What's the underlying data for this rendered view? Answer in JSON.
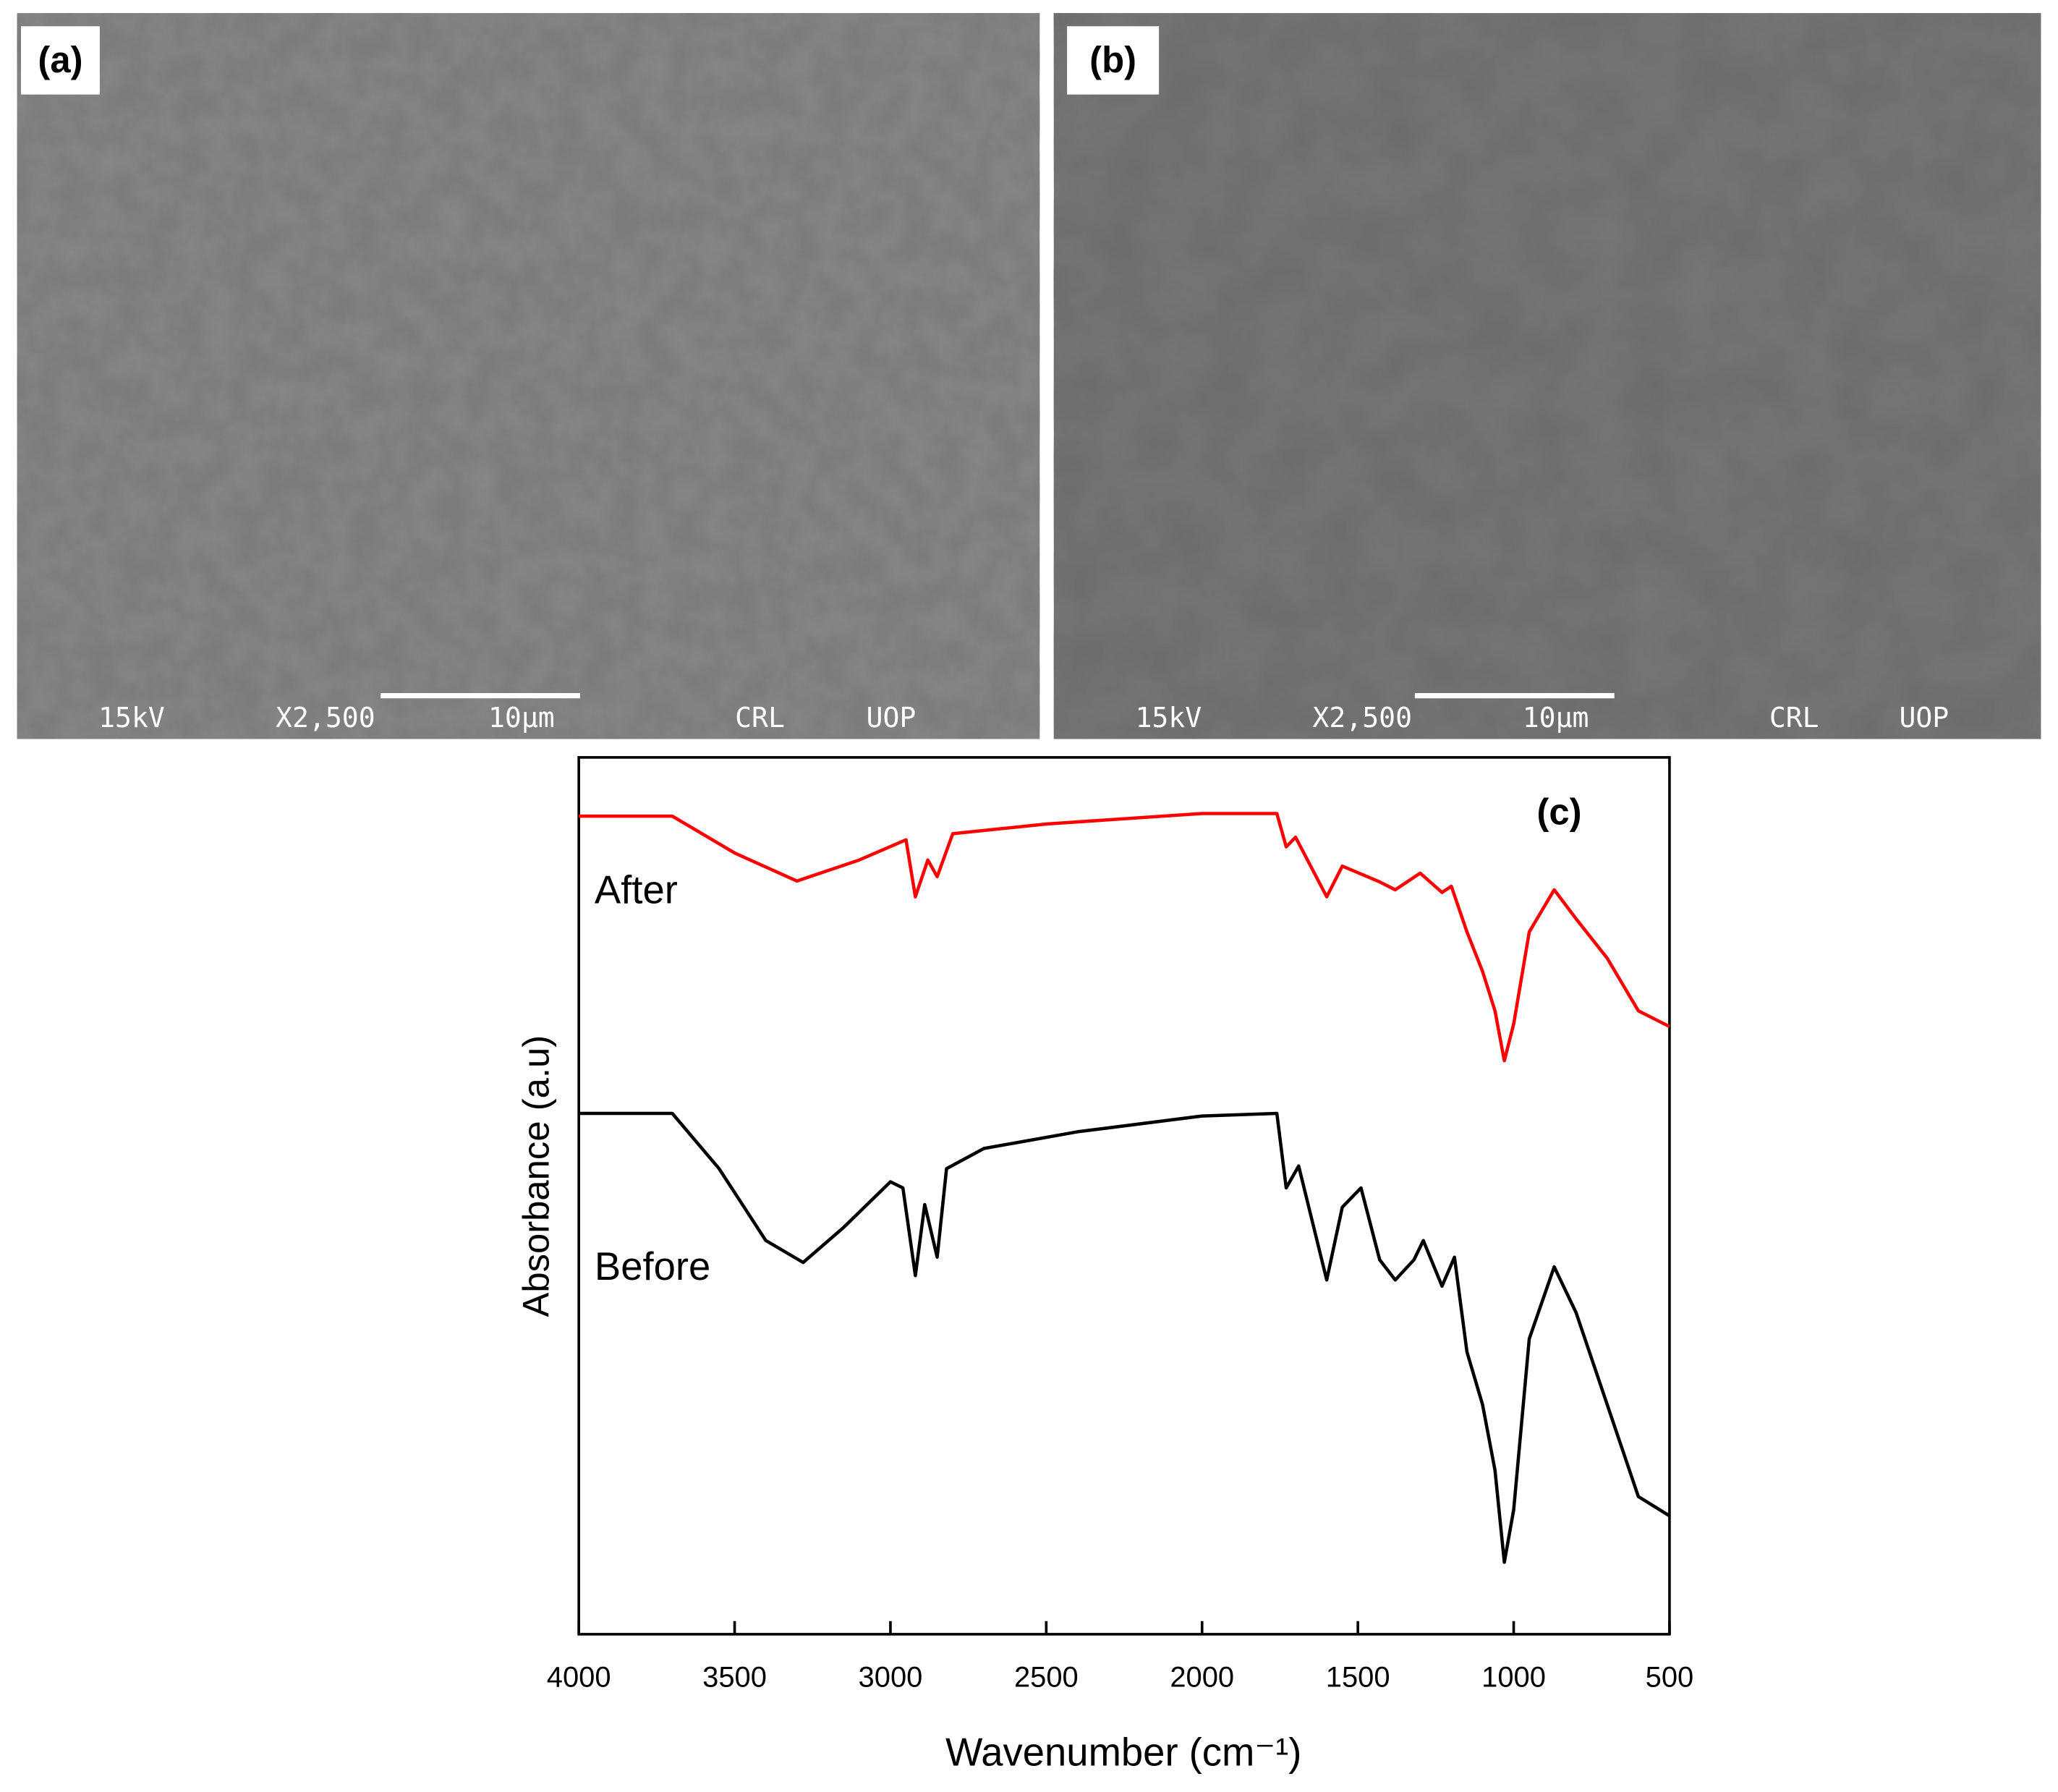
{
  "panels": [
    {
      "label": "(a)",
      "info": [
        "15kV",
        "X2,500",
        "10μm",
        "CRL",
        "UOP"
      ]
    },
    {
      "label": "(b)",
      "info": [
        "15kV",
        "X2,500",
        "10μm",
        "CRL",
        "UOP"
      ]
    }
  ],
  "chart_data": {
    "type": "line",
    "panel_label": "(c)",
    "x_label": "Wavenumber (cm⁻¹)",
    "y_label": "Absorbance (a.u)",
    "xlim": [
      4000,
      500
    ],
    "xticks": [
      4000,
      3500,
      3000,
      2500,
      2000,
      1500,
      1000,
      500
    ],
    "ylim": [
      0,
      100
    ],
    "series": [
      {
        "name": "After",
        "color": "#ff0000",
        "x": [
          4000,
          3700,
          3500,
          3300,
          3100,
          2950,
          2920,
          2880,
          2850,
          2800,
          2500,
          2000,
          1760,
          1730,
          1700,
          1600,
          1550,
          1490,
          1430,
          1380,
          1300,
          1230,
          1200,
          1150,
          1100,
          1060,
          1030,
          1000,
          950,
          870,
          800,
          700,
          600,
          500
        ],
        "values": [
          93.3,
          93.3,
          89.1,
          85.9,
          88.3,
          90.6,
          84.1,
          88.3,
          86.4,
          91.3,
          92.4,
          93.6,
          93.6,
          89.8,
          90.9,
          84.1,
          87.6,
          86.7,
          85.8,
          84.9,
          86.8,
          84.6,
          85.3,
          80.1,
          75.6,
          71.1,
          65.4,
          69.6,
          80.1,
          84.9,
          81.6,
          77.1,
          71.1,
          69.3
        ]
      },
      {
        "name": "Before",
        "color": "#000000",
        "x": [
          4000,
          3700,
          3550,
          3400,
          3280,
          3150,
          3000,
          2960,
          2920,
          2890,
          2850,
          2820,
          2700,
          2400,
          2000,
          1760,
          1730,
          1690,
          1600,
          1550,
          1490,
          1430,
          1380,
          1320,
          1290,
          1230,
          1190,
          1150,
          1100,
          1060,
          1030,
          1000,
          950,
          870,
          800,
          700,
          600,
          500
        ],
        "values": [
          59.4,
          59.4,
          53.1,
          44.9,
          42.4,
          46.4,
          51.6,
          50.9,
          40.9,
          49.0,
          43.0,
          53.1,
          55.4,
          57.3,
          59.1,
          59.4,
          50.9,
          53.4,
          40.4,
          48.7,
          50.9,
          42.7,
          40.4,
          42.7,
          44.9,
          39.7,
          43.0,
          32.2,
          26.2,
          18.7,
          8.2,
          14.2,
          33.7,
          41.9,
          36.7,
          26.2,
          15.7,
          13.5
        ]
      }
    ]
  }
}
